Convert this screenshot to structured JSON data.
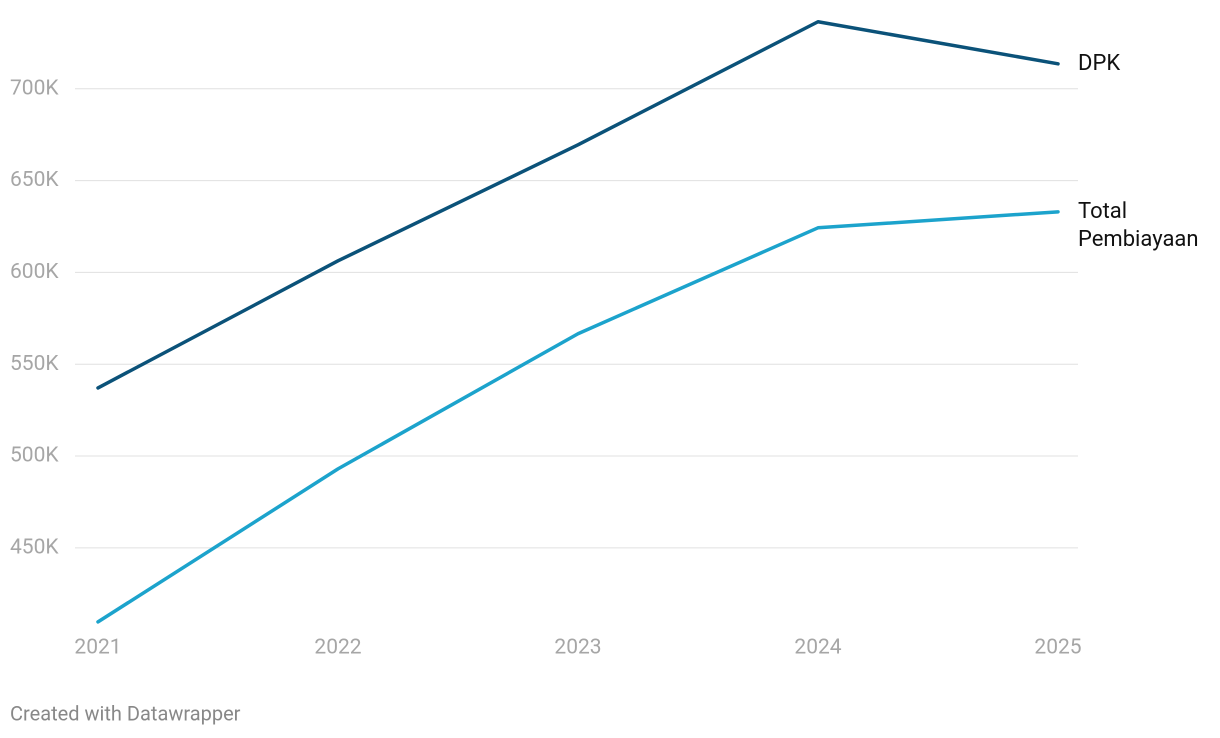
{
  "chart_data": {
    "type": "line",
    "categories": [
      "2021",
      "2022",
      "2023",
      "2024",
      "2025"
    ],
    "series": [
      {
        "name": "DPK",
        "color": "#0b5279",
        "values": [
          537100,
          606300,
          669500,
          736500,
          713600
        ]
      },
      {
        "name": "Total Pembiayaan",
        "color": "#1ca3cc",
        "values": [
          409700,
          493000,
          566600,
          624300,
          633000
        ]
      }
    ],
    "ylim": [
      408000,
      738000
    ],
    "yticks": [
      {
        "value": 450000,
        "label": "450K"
      },
      {
        "value": 500000,
        "label": "500K"
      },
      {
        "value": 550000,
        "label": "550K"
      },
      {
        "value": 600000,
        "label": "600K"
      },
      {
        "value": 650000,
        "label": "650K"
      },
      {
        "value": 700000,
        "label": "700K"
      }
    ],
    "grid": true,
    "note": "Created with Datawrapper"
  }
}
